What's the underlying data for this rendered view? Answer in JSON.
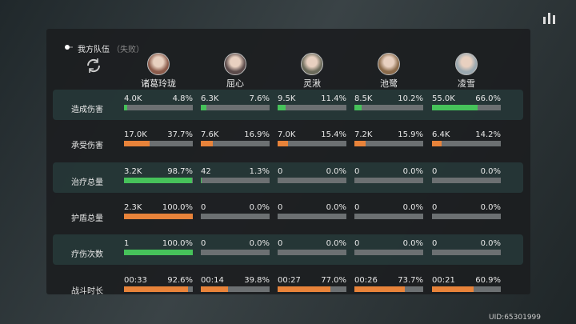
{
  "header": {
    "title": "我方队伍",
    "status": "（失败）"
  },
  "heroes": [
    "诸葛玲珑",
    "屈心",
    "灵湫",
    "池鹭",
    "凌雪"
  ],
  "rows": [
    {
      "label": "造成伤害",
      "color": "#46c25a",
      "cells": [
        {
          "value": "4.0K",
          "percent": "4.8%"
        },
        {
          "value": "6.3K",
          "percent": "7.6%"
        },
        {
          "value": "9.5K",
          "percent": "11.4%"
        },
        {
          "value": "8.5K",
          "percent": "10.2%"
        },
        {
          "value": "55.0K",
          "percent": "66.0%"
        }
      ]
    },
    {
      "label": "承受伤害",
      "color": "#e8833a",
      "cells": [
        {
          "value": "17.0K",
          "percent": "37.7%"
        },
        {
          "value": "7.6K",
          "percent": "16.9%"
        },
        {
          "value": "7.0K",
          "percent": "15.4%"
        },
        {
          "value": "7.2K",
          "percent": "15.9%"
        },
        {
          "value": "6.4K",
          "percent": "14.2%"
        }
      ]
    },
    {
      "label": "治疗总量",
      "color": "#46c25a",
      "cells": [
        {
          "value": "3.2K",
          "percent": "98.7%"
        },
        {
          "value": "42",
          "percent": "1.3%"
        },
        {
          "value": "0",
          "percent": "0.0%"
        },
        {
          "value": "0",
          "percent": "0.0%"
        },
        {
          "value": "0",
          "percent": "0.0%"
        }
      ]
    },
    {
      "label": "护盾总量",
      "color": "#e8833a",
      "cells": [
        {
          "value": "2.3K",
          "percent": "100.0%"
        },
        {
          "value": "0",
          "percent": "0.0%"
        },
        {
          "value": "0",
          "percent": "0.0%"
        },
        {
          "value": "0",
          "percent": "0.0%"
        },
        {
          "value": "0",
          "percent": "0.0%"
        }
      ]
    },
    {
      "label": "疗伤次数",
      "color": "#46c25a",
      "cells": [
        {
          "value": "1",
          "percent": "100.0%"
        },
        {
          "value": "0",
          "percent": "0.0%"
        },
        {
          "value": "0",
          "percent": "0.0%"
        },
        {
          "value": "0",
          "percent": "0.0%"
        },
        {
          "value": "0",
          "percent": "0.0%"
        }
      ]
    },
    {
      "label": "战斗时长",
      "color": "#e8833a",
      "cells": [
        {
          "value": "00:33",
          "percent": "92.6%"
        },
        {
          "value": "00:14",
          "percent": "39.8%"
        },
        {
          "value": "00:27",
          "percent": "77.0%"
        },
        {
          "value": "00:26",
          "percent": "73.7%"
        },
        {
          "value": "00:21",
          "percent": "60.9%"
        }
      ]
    }
  ],
  "uid": "UID:65301999"
}
